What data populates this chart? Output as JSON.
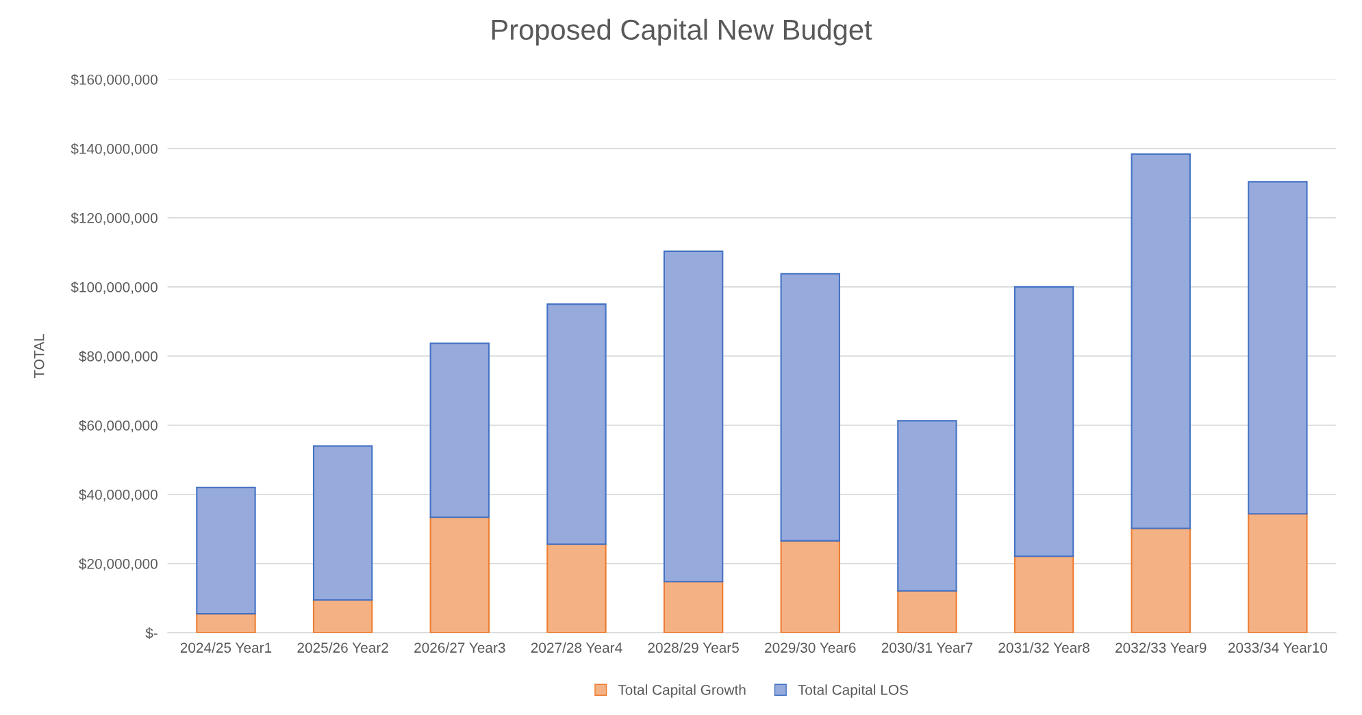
{
  "chart_data": {
    "type": "bar",
    "title": "Proposed Capital New Budget",
    "ylabel": "TOTAL",
    "stacked": true,
    "grid": "y",
    "legend": "bottom",
    "categories": [
      "2024/25 Year1",
      "2025/26 Year2",
      "2026/27 Year3",
      "2027/28 Year4",
      "2028/29 Year5",
      "2029/30 Year6",
      "2030/31 Year7",
      "2031/32 Year8",
      "2032/33 Year9",
      "2033/34 Year10"
    ],
    "series": [
      {
        "name": "Total Capital Growth",
        "color": "#f4b183",
        "values": [
          5500000,
          9500000,
          33400000,
          25600000,
          14800000,
          26600000,
          12100000,
          22100000,
          30200000,
          34400000
        ]
      },
      {
        "name": "Total Capital LOS",
        "color": "#97aadc",
        "values": [
          36500000,
          44500000,
          50300000,
          69400000,
          95500000,
          77200000,
          49200000,
          77900000,
          108200000,
          96000000
        ]
      }
    ],
    "ylim": [
      0,
      160000000
    ],
    "yticks": [
      {
        "value": 0,
        "label": "$-"
      },
      {
        "value": 20000000,
        "label": "$20,000,000"
      },
      {
        "value": 40000000,
        "label": "$40,000,000"
      },
      {
        "value": 60000000,
        "label": "$60,000,000"
      },
      {
        "value": 80000000,
        "label": "$80,000,000"
      },
      {
        "value": 100000000,
        "label": "$100,000,000"
      },
      {
        "value": 120000000,
        "label": "$120,000,000"
      },
      {
        "value": 140000000,
        "label": "$140,000,000"
      },
      {
        "value": 160000000,
        "label": "$160,000,000"
      }
    ]
  }
}
